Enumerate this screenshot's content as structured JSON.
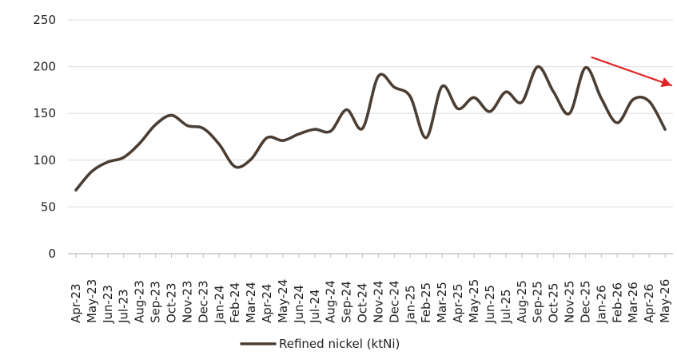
{
  "chart_data": {
    "type": "line",
    "x": [
      "Apr-23",
      "May-23",
      "Jun-23",
      "Jul-23",
      "Aug-23",
      "Sep-23",
      "Oct-23",
      "Nov-23",
      "Dec-23",
      "Jan-24",
      "Feb-24",
      "Mar-24",
      "Apr-24",
      "May-24",
      "Jun-24",
      "Jul-24",
      "Aug-24",
      "Sep-24",
      "Oct-24",
      "Nov-24",
      "Dec-24",
      "Jan-25",
      "Feb-25",
      "Mar-25",
      "Apr-25",
      "May-25",
      "Jun-25",
      "Jul-25",
      "Aug-25",
      "Sep-25",
      "Oct-25",
      "Nov-25",
      "Dec-25",
      "Jan-26",
      "Feb-26",
      "Mar-26",
      "Apr-26",
      "May-26"
    ],
    "series": [
      {
        "name": "Refined nickel (ktNi)",
        "values": [
          68,
          88,
          98,
          103,
          118,
          138,
          148,
          137,
          134,
          117,
          93,
          101,
          124,
          121,
          128,
          133,
          131,
          154,
          134,
          190,
          178,
          168,
          124,
          179,
          155,
          167,
          152,
          173,
          162,
          200,
          173,
          150,
          199,
          166,
          140,
          165,
          163,
          133
        ],
        "color": "#4b3e34"
      }
    ],
    "ylim": [
      0,
      250
    ],
    "yticks": [
      0,
      50,
      100,
      150,
      200,
      250
    ],
    "grid": true,
    "legend": "bottom-center",
    "annotation": {
      "type": "arrow",
      "color": "#e02424",
      "from": {
        "x": "Dec-25",
        "y": 210
      },
      "to": {
        "x": "May-26",
        "y": 180
      }
    }
  }
}
